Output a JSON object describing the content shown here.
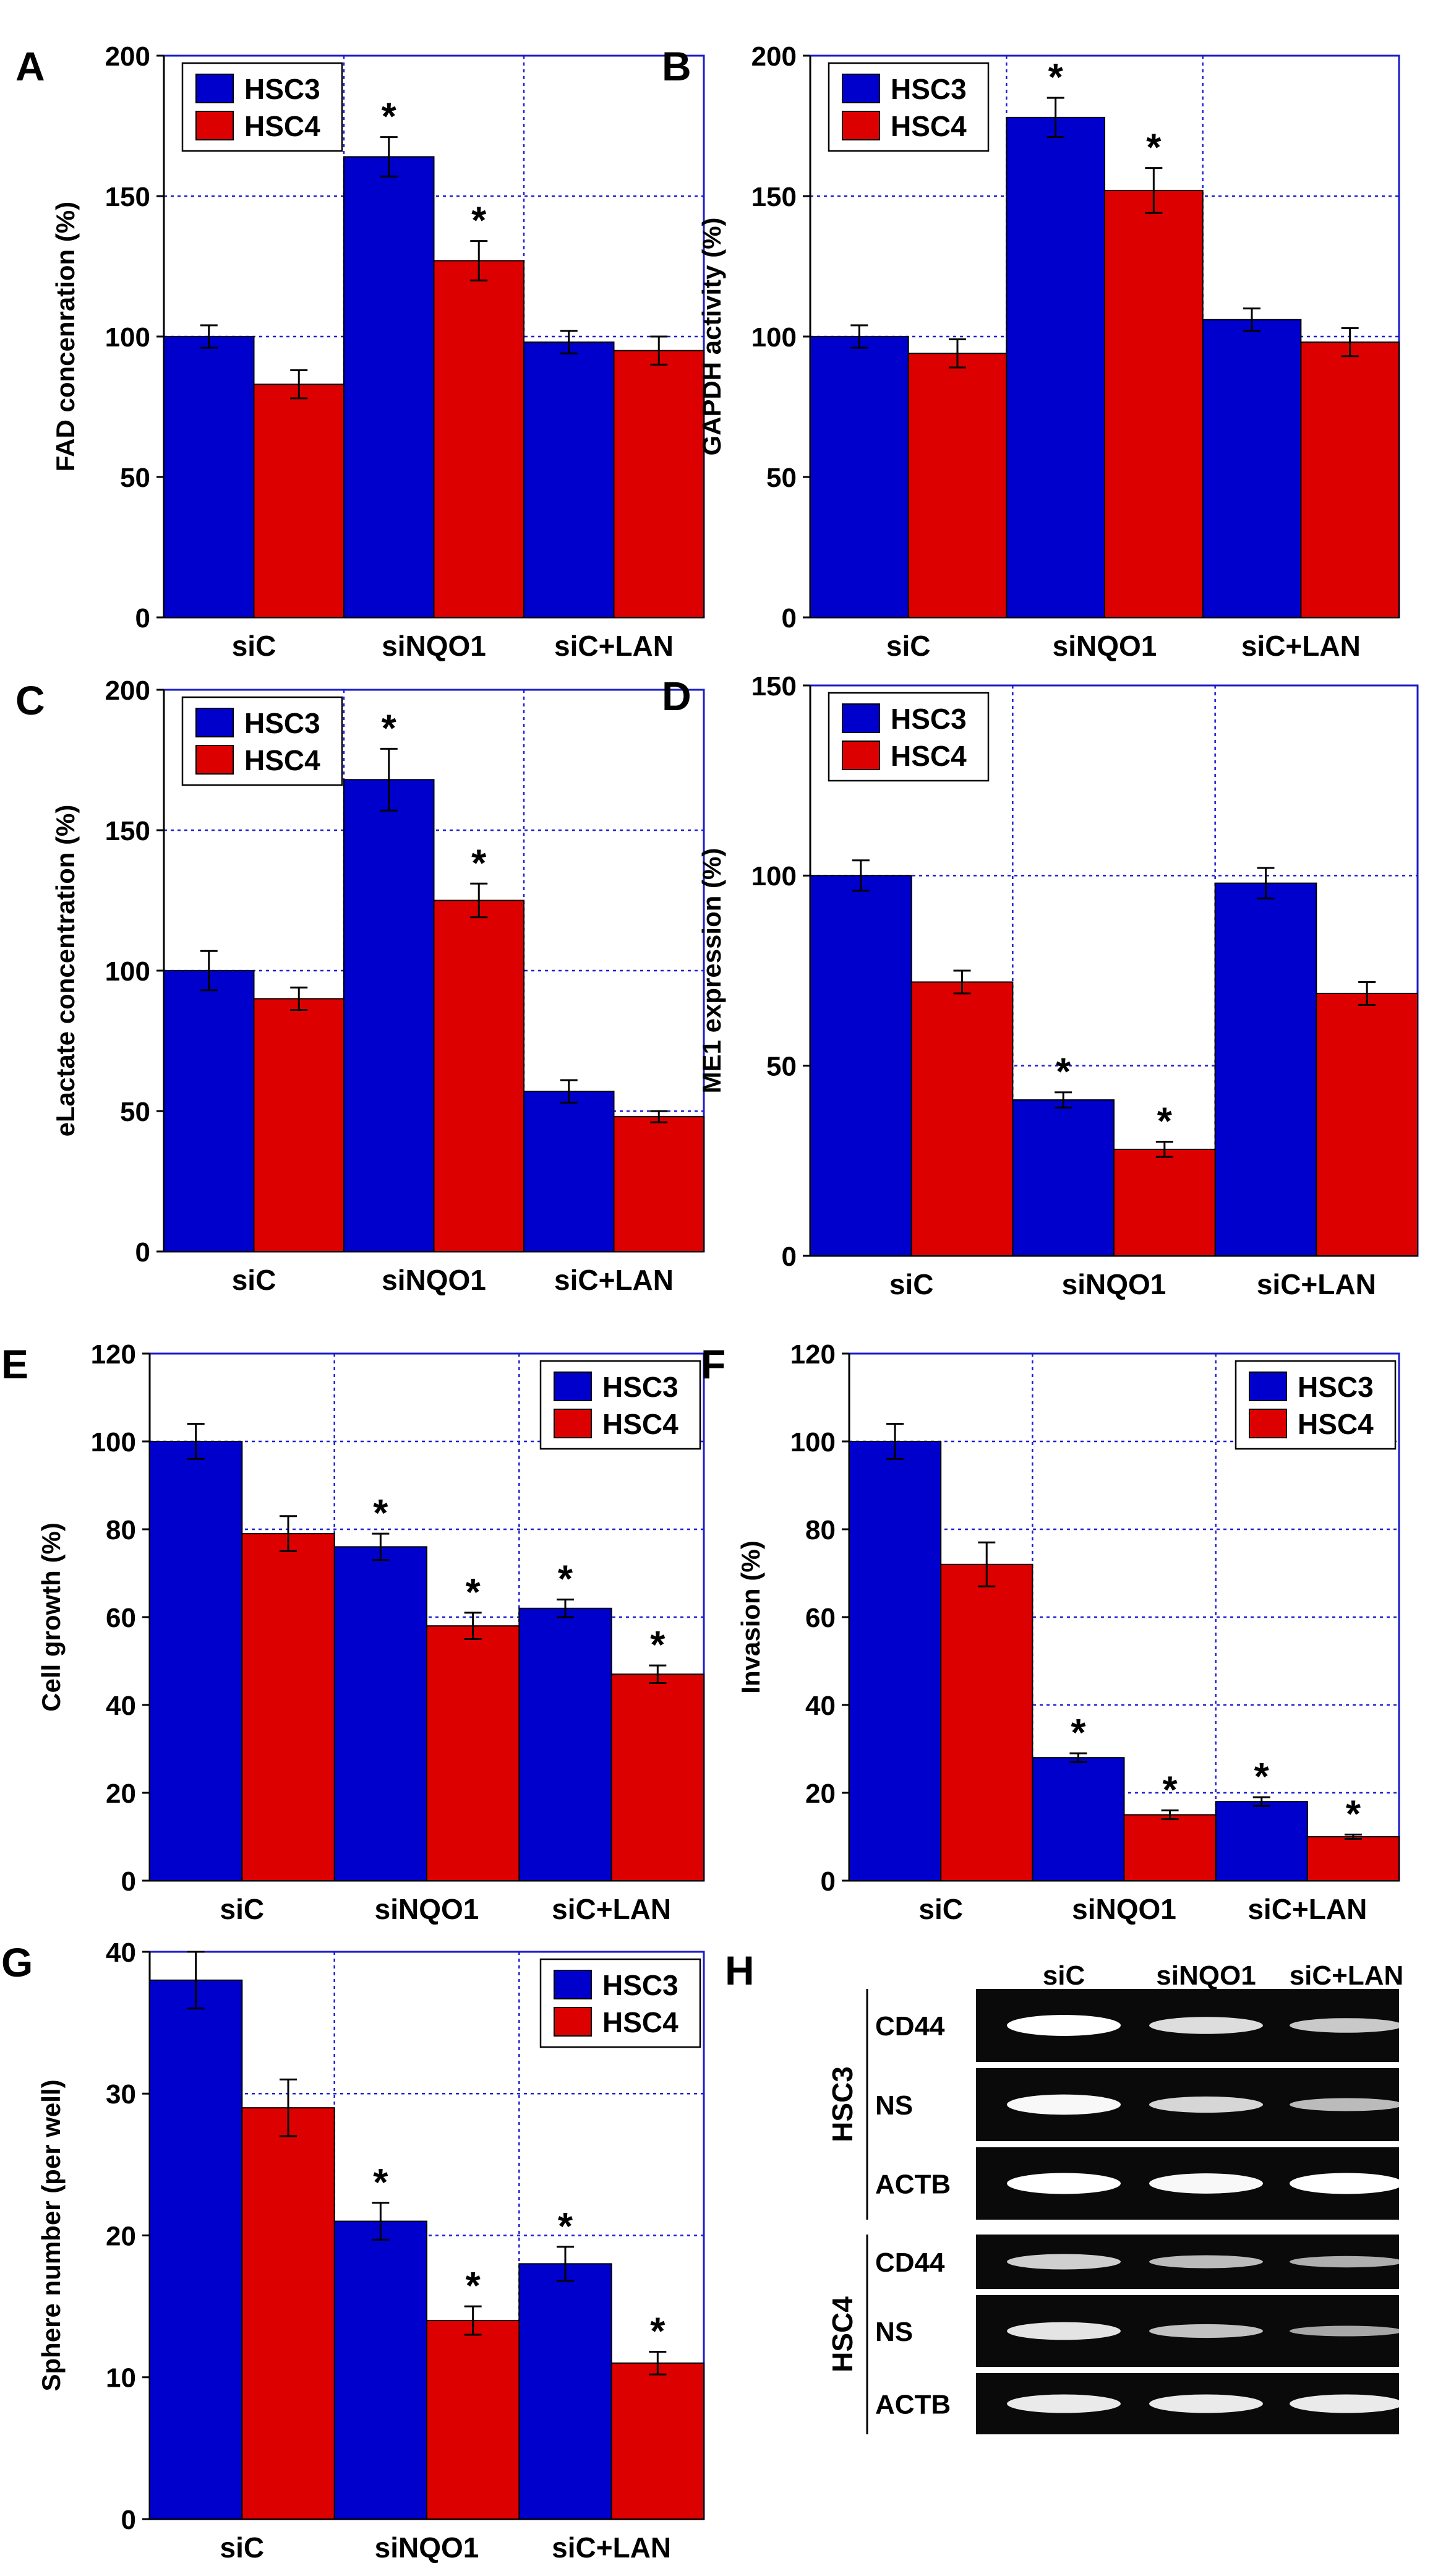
{
  "series_colors": {
    "HSC3": "#0000cc",
    "HSC4": "#dd0000"
  },
  "chart_data": [
    {
      "panel": "A",
      "type": "bar",
      "ylabel": "FAD concenration (%)",
      "categories": [
        "siC",
        "siNQO1",
        "siC+LAN"
      ],
      "ylim": [
        0,
        200
      ],
      "yticks": [
        0,
        50,
        100,
        150,
        200
      ],
      "legend_position": "top-left",
      "series": [
        {
          "name": "HSC3",
          "values": [
            100,
            164,
            98
          ],
          "errors": [
            4,
            7,
            4
          ]
        },
        {
          "name": "HSC4",
          "values": [
            83,
            127,
            95
          ],
          "errors": [
            5,
            7,
            5
          ]
        }
      ],
      "significance": [
        [
          false,
          true,
          false
        ],
        [
          false,
          true,
          false
        ]
      ],
      "sig_marker": "*"
    },
    {
      "panel": "B",
      "type": "bar",
      "ylabel": "GAPDH activity (%)",
      "categories": [
        "siC",
        "siNQO1",
        "siC+LAN"
      ],
      "ylim": [
        0,
        200
      ],
      "yticks": [
        0,
        50,
        100,
        150,
        200
      ],
      "legend_position": "top-left",
      "series": [
        {
          "name": "HSC3",
          "values": [
            100,
            178,
            106
          ],
          "errors": [
            4,
            7,
            4
          ]
        },
        {
          "name": "HSC4",
          "values": [
            94,
            152,
            98
          ],
          "errors": [
            5,
            8,
            5
          ]
        }
      ],
      "significance": [
        [
          false,
          true,
          false
        ],
        [
          false,
          true,
          false
        ]
      ],
      "sig_marker": "*"
    },
    {
      "panel": "C",
      "type": "bar",
      "ylabel": "eLactate concentration (%)",
      "categories": [
        "siC",
        "siNQO1",
        "siC+LAN"
      ],
      "ylim": [
        0,
        200
      ],
      "yticks": [
        0,
        50,
        100,
        150,
        200
      ],
      "legend_position": "top-left",
      "series": [
        {
          "name": "HSC3",
          "values": [
            100,
            168,
            57
          ],
          "errors": [
            7,
            11,
            4
          ]
        },
        {
          "name": "HSC4",
          "values": [
            90,
            125,
            48
          ],
          "errors": [
            4,
            6,
            2
          ]
        }
      ],
      "significance": [
        [
          false,
          true,
          false
        ],
        [
          false,
          true,
          false
        ]
      ],
      "sig_marker": "*"
    },
    {
      "panel": "D",
      "type": "bar",
      "ylabel": "ME1 expression (%)",
      "categories": [
        "siC",
        "siNQO1",
        "siC+LAN"
      ],
      "ylim": [
        0,
        150
      ],
      "yticks": [
        0,
        50,
        100,
        150
      ],
      "legend_position": "top-left",
      "series": [
        {
          "name": "HSC3",
          "values": [
            100,
            41,
            98
          ],
          "errors": [
            4,
            2,
            4
          ]
        },
        {
          "name": "HSC4",
          "values": [
            72,
            28,
            69
          ],
          "errors": [
            3,
            2,
            3
          ]
        }
      ],
      "significance": [
        [
          false,
          true,
          false
        ],
        [
          false,
          true,
          false
        ]
      ],
      "sig_marker": "*"
    },
    {
      "panel": "E",
      "type": "bar",
      "ylabel": "Cell growth (%)",
      "categories": [
        "siC",
        "siNQO1",
        "siC+LAN"
      ],
      "ylim": [
        0,
        120
      ],
      "yticks": [
        0,
        20,
        40,
        60,
        80,
        100,
        120
      ],
      "legend_position": "top-right",
      "series": [
        {
          "name": "HSC3",
          "values": [
            100,
            76,
            62
          ],
          "errors": [
            4,
            3,
            2
          ]
        },
        {
          "name": "HSC4",
          "values": [
            79,
            58,
            47
          ],
          "errors": [
            4,
            3,
            2
          ]
        }
      ],
      "significance": [
        [
          false,
          true,
          true
        ],
        [
          false,
          true,
          true
        ]
      ],
      "sig_marker": "*"
    },
    {
      "panel": "F",
      "type": "bar",
      "ylabel": "Invasion (%)",
      "categories": [
        "siC",
        "siNQO1",
        "siC+LAN"
      ],
      "ylim": [
        0,
        120
      ],
      "yticks": [
        0,
        20,
        40,
        60,
        80,
        100,
        120
      ],
      "legend_position": "top-right",
      "series": [
        {
          "name": "HSC3",
          "values": [
            100,
            28,
            18
          ],
          "errors": [
            4,
            1,
            1
          ]
        },
        {
          "name": "HSC4",
          "values": [
            72,
            15,
            10
          ],
          "errors": [
            5,
            1,
            0.5
          ]
        }
      ],
      "significance": [
        [
          false,
          true,
          true
        ],
        [
          false,
          true,
          true
        ]
      ],
      "sig_marker": "*"
    },
    {
      "panel": "G",
      "type": "bar",
      "ylabel": "Sphere number (per well)",
      "categories": [
        "siC",
        "siNQO1",
        "siC+LAN"
      ],
      "ylim": [
        0,
        40
      ],
      "yticks": [
        0,
        10,
        20,
        30,
        40
      ],
      "legend_position": "top-right",
      "series": [
        {
          "name": "HSC3",
          "values": [
            38,
            21,
            18
          ],
          "errors": [
            2,
            1.3,
            1.2
          ]
        },
        {
          "name": "HSC4",
          "values": [
            29,
            14,
            11
          ],
          "errors": [
            2,
            1,
            0.8
          ]
        }
      ],
      "significance": [
        [
          false,
          true,
          true
        ],
        [
          false,
          true,
          true
        ]
      ],
      "sig_marker": "*"
    }
  ],
  "gel_panel": {
    "panel": "H",
    "columns": [
      "siC",
      "siNQO1",
      "siC+LAN"
    ],
    "groups": [
      {
        "cell_line": "HSC3",
        "rows": [
          {
            "gene": "CD44",
            "intensity": [
              1.0,
              0.75,
              0.6
            ]
          },
          {
            "gene": "NS",
            "intensity": [
              0.95,
              0.7,
              0.5
            ]
          },
          {
            "gene": "ACTB",
            "intensity": [
              1.0,
              0.95,
              1.0
            ]
          }
        ]
      },
      {
        "cell_line": "HSC4",
        "rows": [
          {
            "gene": "CD44",
            "intensity": [
              0.65,
              0.5,
              0.4
            ]
          },
          {
            "gene": "NS",
            "intensity": [
              0.8,
              0.55,
              0.35
            ]
          },
          {
            "gene": "ACTB",
            "intensity": [
              0.85,
              0.85,
              0.85
            ]
          }
        ]
      }
    ]
  }
}
